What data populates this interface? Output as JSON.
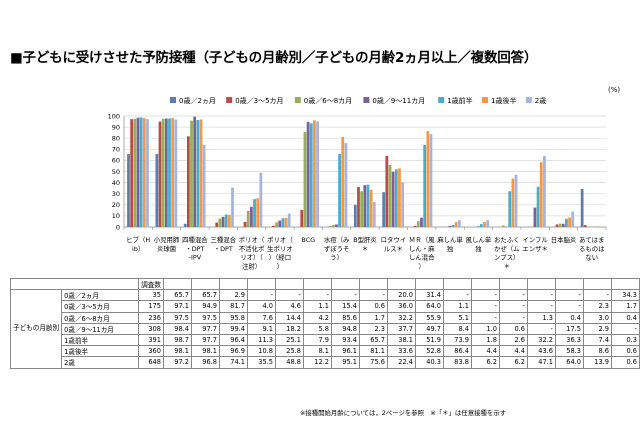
{
  "title": "■子どもに受けさせた予防接種（子どもの月齢別／子どもの月齢2ヵ月以上／複数回答）",
  "table": {
    "group_label": "子どもの月齢別",
    "n_header": "調査数"
  },
  "note": "※接種開始月齢については，2ページを参照　※「＊」は任意接種を示す",
  "chart_data": {
    "type": "bar",
    "unit": "(%)",
    "ylim": [
      0,
      100
    ],
    "yticks": [
      0,
      10,
      20,
      30,
      40,
      50,
      60,
      70,
      80,
      90,
      100
    ],
    "grid": true,
    "legend_position": "top",
    "categories": [
      "ヒブ（Hib）",
      "小児用肺炎球菌",
      "四種混合・DPT-IPV",
      "三種混合・DPT",
      "ポリオ（不活化ポリオ）（注射）",
      "ポリオ（生ポリオ）（経口）",
      "BCG",
      "水痘（みずぼうそう）",
      "B型肝炎＊",
      "ロタウイルス＊",
      "ＭＲ（風しん・麻しん混合）",
      "麻しん単独",
      "風しん単独",
      "おたふくかぜ（ムンプス）＊",
      "インフルエンザ＊",
      "日本脳炎",
      "あてはまるものはない"
    ],
    "series": [
      {
        "name": "0歳／2ヵ月",
        "n": "35",
        "color": "#5B7DB1",
        "values": [
          65.7,
          65.7,
          2.9,
          null,
          null,
          null,
          null,
          null,
          20.0,
          31.4,
          null,
          null,
          null,
          null,
          null,
          null,
          34.3
        ]
      },
      {
        "name": "0歳／3～5カ月",
        "n": "175",
        "color": "#B84A47",
        "values": [
          97.1,
          94.9,
          81.7,
          4.0,
          4.6,
          1.1,
          15.4,
          0.6,
          36.0,
          64.0,
          1.1,
          null,
          null,
          null,
          null,
          2.3,
          1.7
        ]
      },
      {
        "name": "0歳／6～8カ月",
        "n": "236",
        "color": "#93B052",
        "values": [
          97.5,
          97.5,
          95.8,
          7.6,
          14.4,
          4.2,
          85.6,
          1.7,
          32.2,
          55.9,
          5.1,
          null,
          null,
          1.3,
          0.4,
          3.0,
          0.4
        ]
      },
      {
        "name": "0歳／9～11カ月",
        "n": "308",
        "color": "#7A619E",
        "values": [
          98.4,
          97.7,
          99.4,
          9.1,
          18.2,
          5.8,
          94.8,
          2.3,
          37.7,
          49.7,
          8.4,
          1.0,
          0.6,
          null,
          17.5,
          2.9,
          null
        ]
      },
      {
        "name": "1歳前半",
        "n": "391",
        "color": "#4AACC5",
        "values": [
          98.7,
          97.7,
          96.4,
          11.3,
          25.1,
          7.9,
          93.4,
          65.7,
          38.1,
          51.9,
          73.9,
          1.8,
          2.6,
          32.2,
          36.3,
          7.4,
          0.3
        ]
      },
      {
        "name": "1歳後半",
        "n": "360",
        "color": "#F79647",
        "values": [
          98.1,
          98.1,
          96.9,
          10.8,
          25.8,
          8.1,
          96.1,
          81.1,
          33.6,
          52.8,
          86.4,
          4.4,
          4.4,
          43.6,
          58.3,
          8.6,
          0.6
        ]
      },
      {
        "name": "2歳",
        "n": "648",
        "color": "#A4B4DB",
        "values": [
          97.2,
          96.8,
          74.1,
          35.5,
          48.8,
          12.2,
          95.1,
          75.6,
          22.4,
          40.3,
          83.8,
          6.2,
          6.2,
          47.1,
          64.0,
          13.9,
          0.6
        ]
      }
    ]
  }
}
